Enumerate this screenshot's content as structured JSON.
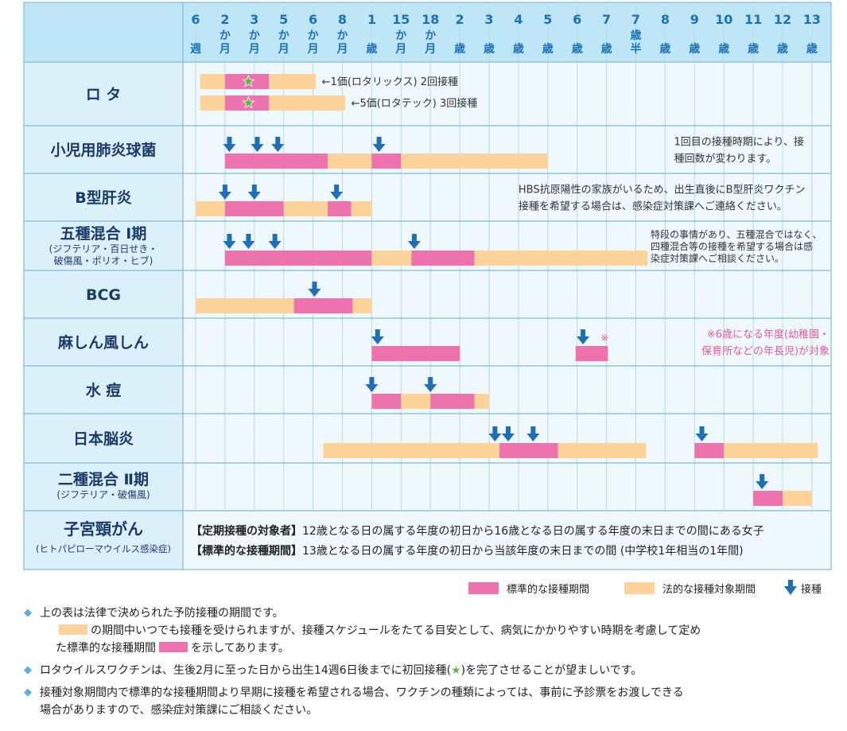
{
  "colors": {
    "standard": "#ee72ad",
    "legal": "#fdd39a",
    "arrow": "#1f6fb7",
    "grid_line": "#b9d8e8",
    "header_bg": "#bfe6f6",
    "label_bg": "#dcf0f9",
    "row_bg": "#eef8fd",
    "header_text": "#1b73b5",
    "star": "#6ab04c",
    "note_pink": "#e85a9b"
  },
  "columns": [
    {
      "top": "6",
      "bottom": "週"
    },
    {
      "top": "2",
      "mid": "か",
      "bottom": "月"
    },
    {
      "top": "3",
      "mid": "か",
      "bottom": "月"
    },
    {
      "top": "5",
      "mid": "か",
      "bottom": "月"
    },
    {
      "top": "6",
      "mid": "か",
      "bottom": "月"
    },
    {
      "top": "8",
      "mid": "か",
      "bottom": "月"
    },
    {
      "top": "1",
      "bottom": "歳"
    },
    {
      "top": "15",
      "mid": "か",
      "bottom": "月"
    },
    {
      "top": "18",
      "mid": "か",
      "bottom": "月"
    },
    {
      "top": "2",
      "bottom": "歳"
    },
    {
      "top": "3",
      "bottom": "歳"
    },
    {
      "top": "4",
      "bottom": "歳"
    },
    {
      "top": "5",
      "bottom": "歳"
    },
    {
      "top": "6",
      "bottom": "歳"
    },
    {
      "top": "7",
      "bottom": "歳"
    },
    {
      "top": "7",
      "mid": "歳",
      "bottom": "半"
    },
    {
      "top": "8",
      "bottom": "歳"
    },
    {
      "top": "9",
      "bottom": "歳"
    },
    {
      "top": "10",
      "bottom": "歳"
    },
    {
      "top": "11",
      "bottom": "歳"
    },
    {
      "top": "12",
      "bottom": "歳"
    },
    {
      "top": "13",
      "bottom": "歳"
    }
  ],
  "rows": [
    {
      "label": "ロ タ",
      "sublabels": [],
      "bars": [
        {
          "type": "legal",
          "from": 0.15,
          "to": 1.0,
          "lane": 0
        },
        {
          "type": "standard",
          "from": 1.0,
          "to": 2.5,
          "lane": 0
        },
        {
          "type": "legal",
          "from": 2.5,
          "to": 4.1,
          "lane": 0
        },
        {
          "type": "legal",
          "from": 0.15,
          "to": 1.0,
          "lane": 1
        },
        {
          "type": "standard",
          "from": 1.0,
          "to": 2.5,
          "lane": 1
        },
        {
          "type": "legal",
          "from": 2.5,
          "to": 5.1,
          "lane": 1
        }
      ],
      "stars": [
        {
          "pos": 1.8,
          "lane": 0
        },
        {
          "pos": 1.8,
          "lane": 1
        }
      ],
      "arrows": [],
      "notes": [
        {
          "text": "←1価(ロタリックス) 2回接種",
          "pos": 4.3,
          "lane": 0
        },
        {
          "text": "←5価(ロタテック) 3回接種",
          "pos": 5.3,
          "lane": 1
        }
      ]
    },
    {
      "label": "小児用肺炎球菌",
      "sublabels": [],
      "bars": [
        {
          "type": "standard",
          "from": 1.0,
          "to": 4.5
        },
        {
          "type": "legal",
          "from": 4.5,
          "to": 6.0
        },
        {
          "type": "standard",
          "from": 6.0,
          "to": 7.0
        },
        {
          "type": "legal",
          "from": 7.0,
          "to": 12.0
        }
      ],
      "stars": [],
      "arrows": [
        1.15,
        2.1,
        2.8,
        6.25
      ],
      "notes": [
        {
          "text": "1回目の接種時期により、接",
          "pos": 16.3,
          "lane": 0,
          "align": "left"
        },
        {
          "text": "種回数が変わります。",
          "pos": 16.3,
          "lane": 1,
          "align": "left"
        }
      ]
    },
    {
      "label": "B型肝炎",
      "sublabels": [],
      "bars": [
        {
          "type": "legal",
          "from": 0.0,
          "to": 1.0
        },
        {
          "type": "standard",
          "from": 1.0,
          "to": 3.0
        },
        {
          "type": "legal",
          "from": 3.0,
          "to": 4.5
        },
        {
          "type": "standard",
          "from": 4.5,
          "to": 5.3
        },
        {
          "type": "legal",
          "from": 5.3,
          "to": 6.0
        }
      ],
      "stars": [],
      "arrows": [
        1.0,
        2.0,
        4.8
      ],
      "notes": [
        {
          "text": "HBS抗原陽性の家族がいるため、出生直後にB型肝炎ワクチン",
          "pos": 11.0,
          "lane": 0,
          "align": "left"
        },
        {
          "text": "接種を希望する場合は、感染症対策課へご連絡ください。",
          "pos": 11.0,
          "lane": 1,
          "align": "left"
        }
      ]
    },
    {
      "label": "五種混合 Ⅰ期",
      "sublabels": [
        "(ジフテリア・百日せき・",
        "破傷風・ポリオ・ヒブ)"
      ],
      "bars": [
        {
          "type": "standard",
          "from": 1.0,
          "to": 6.0
        },
        {
          "type": "legal",
          "from": 6.0,
          "to": 7.35
        },
        {
          "type": "standard",
          "from": 7.35,
          "to": 9.5
        },
        {
          "type": "legal",
          "from": 9.5,
          "to": 15.4
        }
      ],
      "stars": [],
      "arrows": [
        1.15,
        1.8,
        2.7,
        7.45
      ],
      "notes": [
        {
          "text": "特段の事情があり、五種混合ではなく、",
          "pos": 15.5,
          "lane": 0,
          "align": "left"
        },
        {
          "text": "四種混合等の接種を希望する場合は感",
          "pos": 15.5,
          "lane": 1,
          "align": "left"
        },
        {
          "text": "染症対策課へご相談ください。",
          "pos": 15.5,
          "lane": 2,
          "align": "left"
        }
      ]
    },
    {
      "label": "BCG",
      "sublabels": [],
      "bars": [
        {
          "type": "legal",
          "from": 0.0,
          "to": 3.35
        },
        {
          "type": "standard",
          "from": 3.35,
          "to": 5.35
        },
        {
          "type": "legal",
          "from": 5.35,
          "to": 6.0
        }
      ],
      "stars": [],
      "arrows": [
        4.05
      ],
      "notes": []
    },
    {
      "label": "麻しん風しん",
      "sublabels": [],
      "bars": [
        {
          "type": "standard",
          "from": 6.0,
          "to": 9.0
        },
        {
          "type": "standard",
          "from": 12.95,
          "to": 14.05
        }
      ],
      "stars": [],
      "arrows": [
        6.2,
        13.2
      ],
      "mark": {
        "text": "※",
        "pos": 13.8
      },
      "notes": [
        {
          "text": "※6歳になる年度(幼稚園・",
          "pos": 21.6,
          "lane": 0,
          "align": "right",
          "pink": true
        },
        {
          "text": "保育所などの年長児)が対象",
          "pos": 21.6,
          "lane": 1,
          "align": "right",
          "pink": true
        }
      ]
    },
    {
      "label": "水 痘",
      "sublabels": [],
      "bars": [
        {
          "type": "standard",
          "from": 6.0,
          "to": 7.0
        },
        {
          "type": "legal",
          "from": 7.0,
          "to": 8.0
        },
        {
          "type": "standard",
          "from": 8.0,
          "to": 9.5
        },
        {
          "type": "legal",
          "from": 9.5,
          "to": 10.0
        }
      ],
      "stars": [],
      "arrows": [
        6.0,
        8.0
      ],
      "notes": []
    },
    {
      "label": "日本脳炎",
      "sublabels": [],
      "bars": [
        {
          "type": "legal",
          "from": 4.35,
          "to": 10.35
        },
        {
          "type": "standard",
          "from": 10.35,
          "to": 12.35
        },
        {
          "type": "legal",
          "from": 12.35,
          "to": 15.35
        },
        {
          "type": "standard",
          "from": 17.0,
          "to": 18.0
        },
        {
          "type": "legal",
          "from": 18.0,
          "to": 21.2
        }
      ],
      "stars": [],
      "arrows": [
        10.2,
        10.65,
        11.5,
        17.25
      ],
      "notes": []
    },
    {
      "label": "二種混合 Ⅱ期",
      "sublabels": [
        "(ジフテリア・破傷風)"
      ],
      "bars": [
        {
          "type": "standard",
          "from": 19.0,
          "to": 20.0
        },
        {
          "type": "legal",
          "from": 20.0,
          "to": 21.0
        }
      ],
      "stars": [],
      "arrows": [
        19.3
      ],
      "notes": []
    }
  ],
  "hpv_row": {
    "label": "子宮頸がん",
    "sublabel": "(ヒトパピローマウイルス感染症)",
    "line1_key": "【定期接種の対象者】",
    "line1_text": "12歳となる日の属する年度の初日から16歳となる日の属する年度の末日までの間にある女子",
    "line2_key": "【標準的な接種期間】",
    "line2_text": "13歳となる日の属する年度の初日から当該年度の末日までの間 (中学校1年相当の1年間)"
  },
  "legend": {
    "standard_label": "標準的な接種期間",
    "legal_label": "法的な接種対象期間",
    "arrow_label": "接種",
    "arrow_icon": "down-arrow-icon"
  },
  "notes": {
    "n1": "上の表は法律で決められた予防接種の期間です。",
    "n1b_pre": "の期間中いつでも接種を受けられますが、接種スケジュールをたてる目安として、病気にかかりやすい時期を考慮して定め",
    "n1c_pre": "た標準的な接種期間",
    "n1c_post": "を示してあります。",
    "n2_pre": "ロタウイルスワクチンは、生後2月に至った日から出生14週6日後までに初回接種(",
    "n2_post": ")を完了させることが望ましいです。",
    "n3a": "接種対象期間内で標準的な接種期間より早期に接種を希望される場合、ワクチンの種類によっては、事前に予診票をお渡しできる",
    "n3b": "場合がありますので、感染症対策課にご相談ください。",
    "bullet_icon": "diamond-bullet-icon",
    "star_icon": "star-icon"
  }
}
